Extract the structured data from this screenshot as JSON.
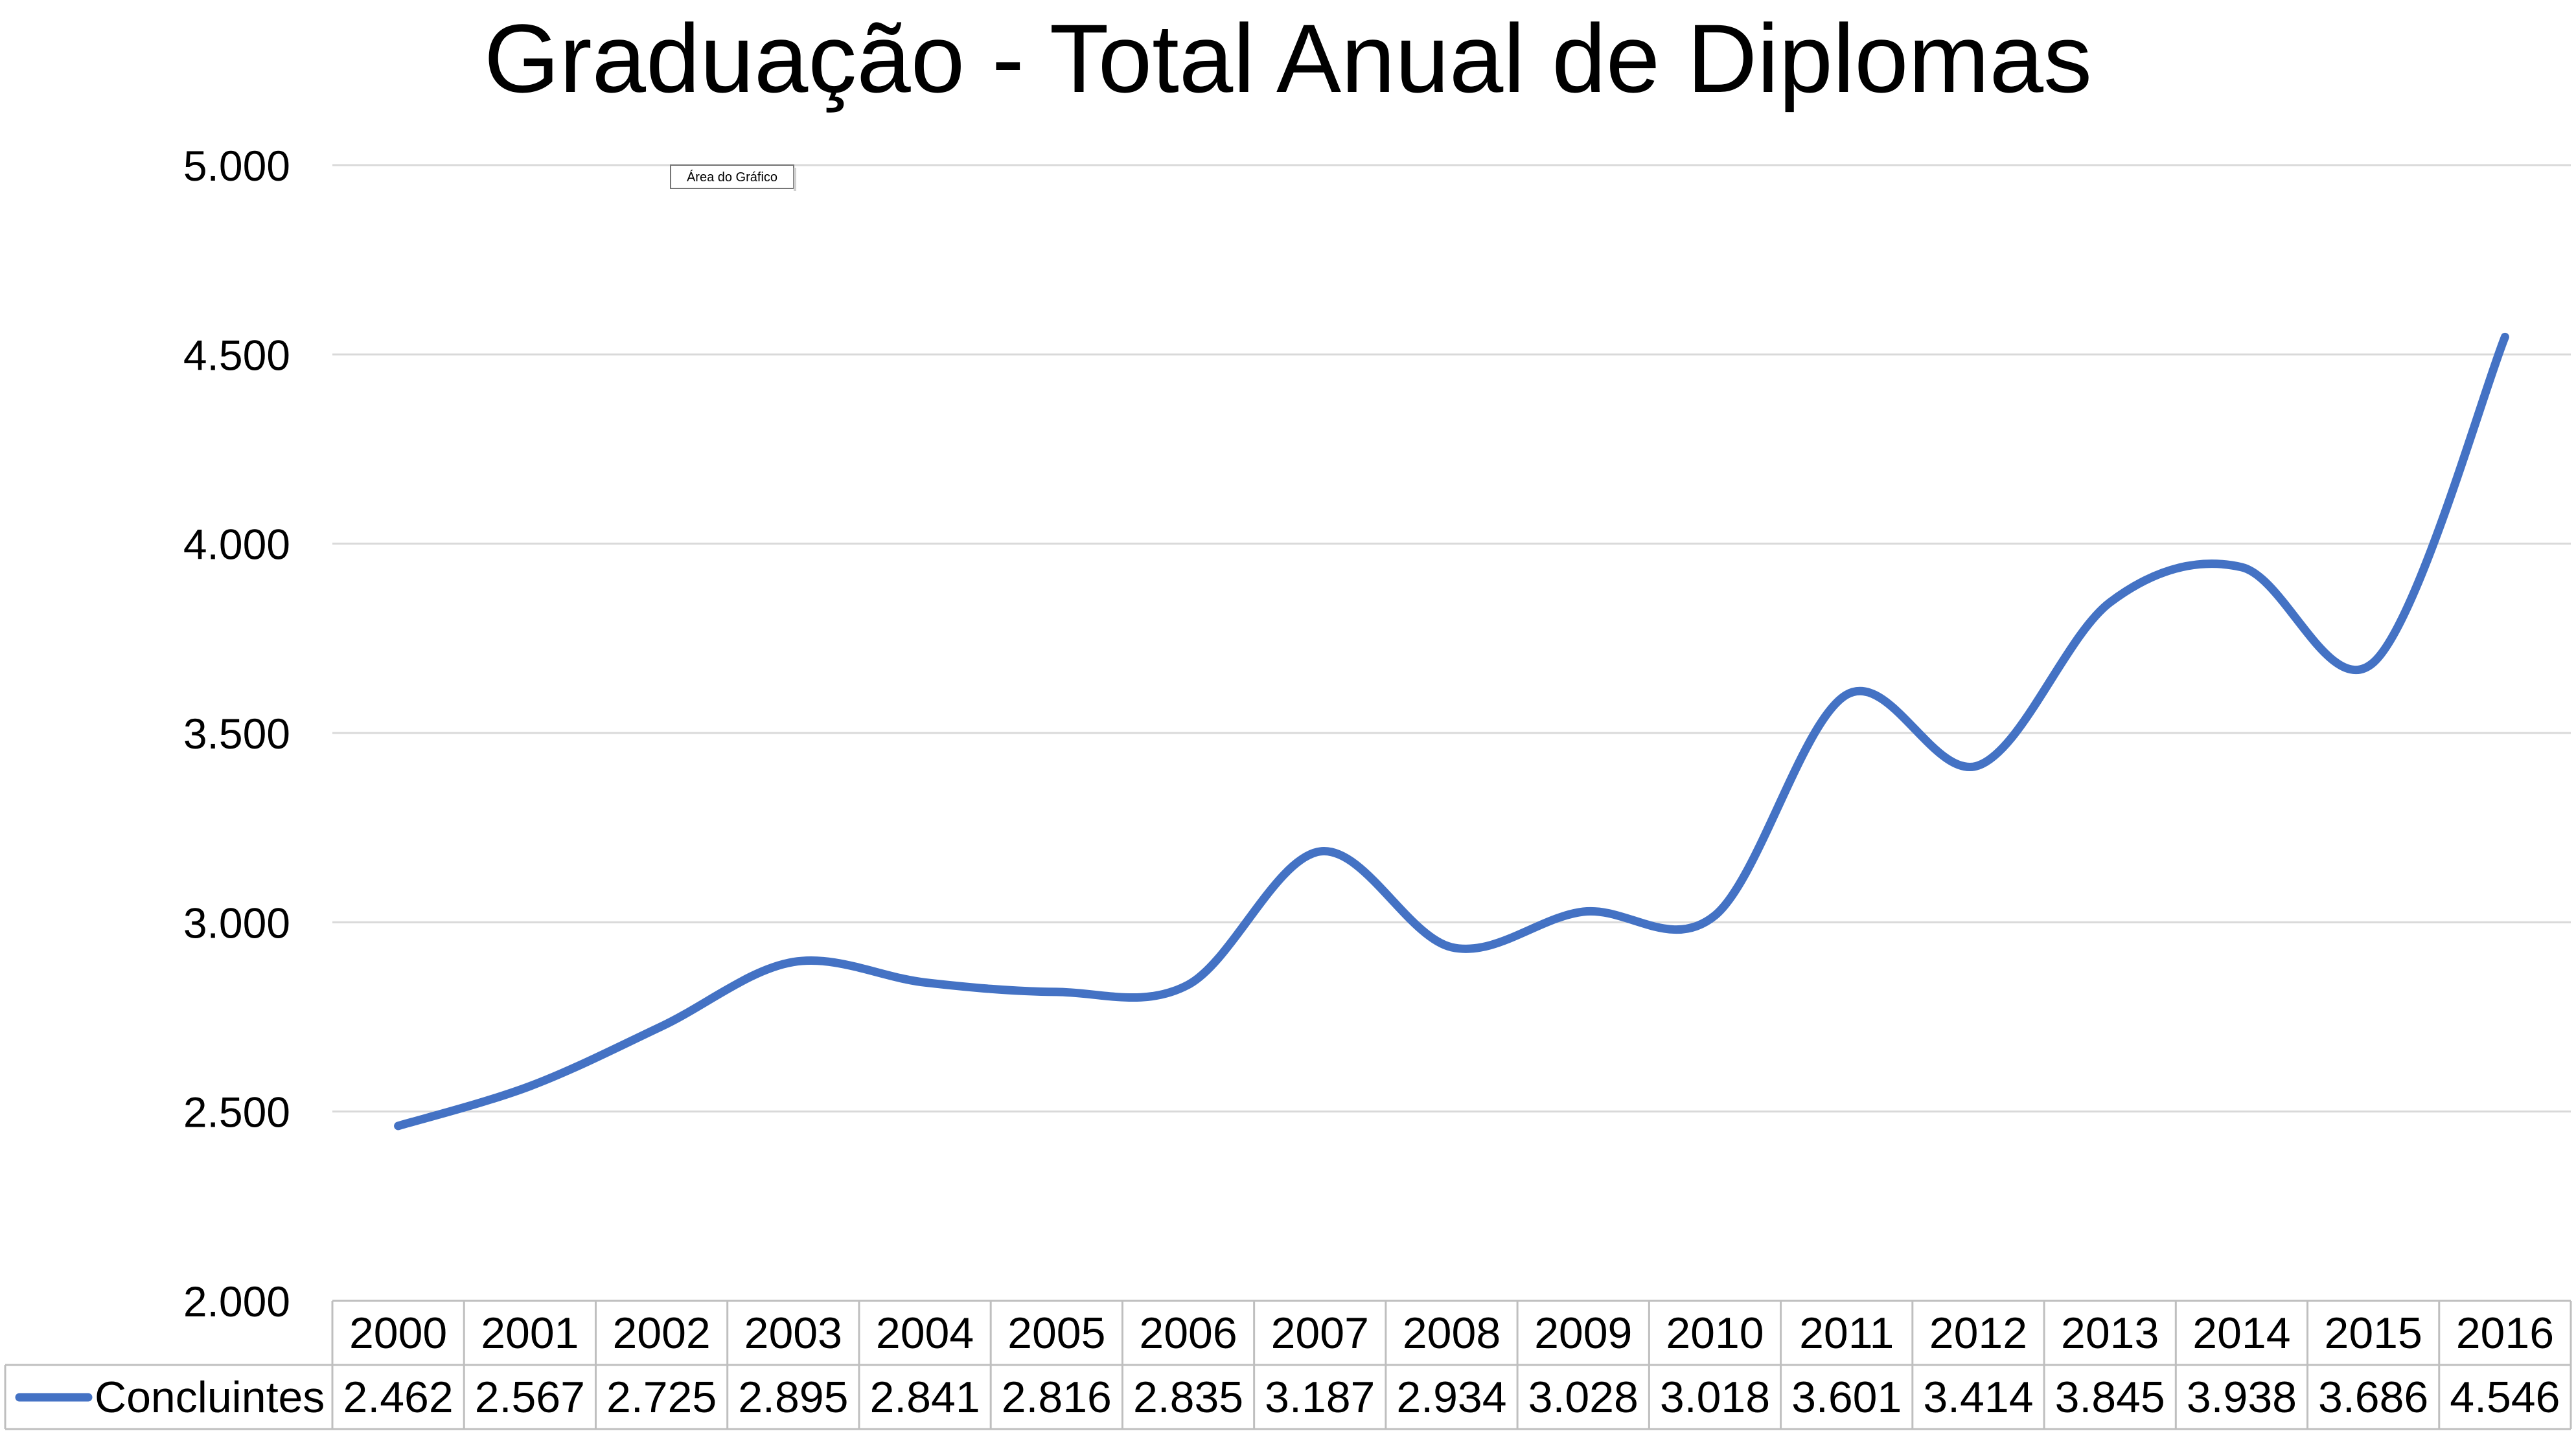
{
  "chart_data": {
    "type": "line",
    "title": "Graduação - Total Anual de Diplomas",
    "tooltip": "Área do Gráfico",
    "categories": [
      "2000",
      "2001",
      "2002",
      "2003",
      "2004",
      "2005",
      "2006",
      "2007",
      "2008",
      "2009",
      "2010",
      "2011",
      "2012",
      "2013",
      "2014",
      "2015",
      "2016"
    ],
    "series": [
      {
        "name": "Concluintes",
        "color": "#4472C4",
        "values": [
          2462,
          2567,
          2725,
          2895,
          2841,
          2816,
          2835,
          3187,
          2934,
          3028,
          3018,
          3601,
          3414,
          3845,
          3938,
          3686,
          4546
        ],
        "labels": [
          "2.462",
          "2.567",
          "2.725",
          "2.895",
          "2.841",
          "2.816",
          "2.835",
          "3.187",
          "2.934",
          "3.028",
          "3.018",
          "3.601",
          "3.414",
          "3.845",
          "3.938",
          "3.686",
          "4.546"
        ]
      }
    ],
    "ylim": [
      2000,
      5000
    ],
    "yticks": [
      2000,
      2500,
      3000,
      3500,
      4000,
      4500,
      5000
    ],
    "ytick_labels": [
      "2.000",
      "2.500",
      "3.000",
      "3.500",
      "4.000",
      "4.500",
      "5.000"
    ],
    "smooth": true,
    "grid": true,
    "data_table": true,
    "xlabel": "",
    "ylabel": ""
  }
}
